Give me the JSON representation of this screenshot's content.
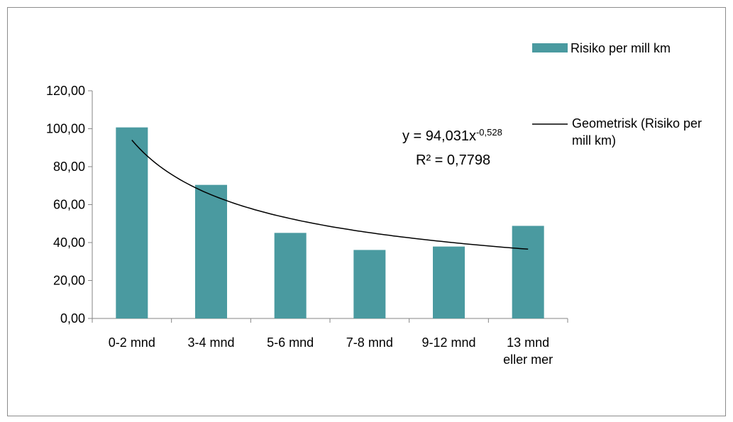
{
  "chart_data": {
    "type": "bar",
    "categories": [
      [
        "0-2 mnd"
      ],
      [
        "3-4 mnd"
      ],
      [
        "5-6 mnd"
      ],
      [
        "7-8 mnd"
      ],
      [
        "9-12 mnd"
      ],
      [
        "13 mnd",
        "eller mer"
      ]
    ],
    "series": [
      {
        "name": "Risiko per mill km",
        "values": [
          100.7,
          70.4,
          45.1,
          36.1,
          37.9,
          48.8
        ],
        "color": "#4a9aa0"
      }
    ],
    "trendline": {
      "name_lines": [
        "Geometrisk (Risiko per",
        "mill km)"
      ],
      "type": "power",
      "a": 94.031,
      "b": -0.528,
      "equation_prefix": "y = 94,031x",
      "equation_exponent": "-0,528",
      "r2_label": "R² = 0,7798",
      "color": "#000000"
    },
    "y_ticks": [
      "0,00",
      "20,00",
      "40,00",
      "60,00",
      "80,00",
      "100,00",
      "120,00"
    ],
    "ylim": [
      0,
      120
    ],
    "y_step": 20,
    "grid": false,
    "legend_position": "right"
  }
}
